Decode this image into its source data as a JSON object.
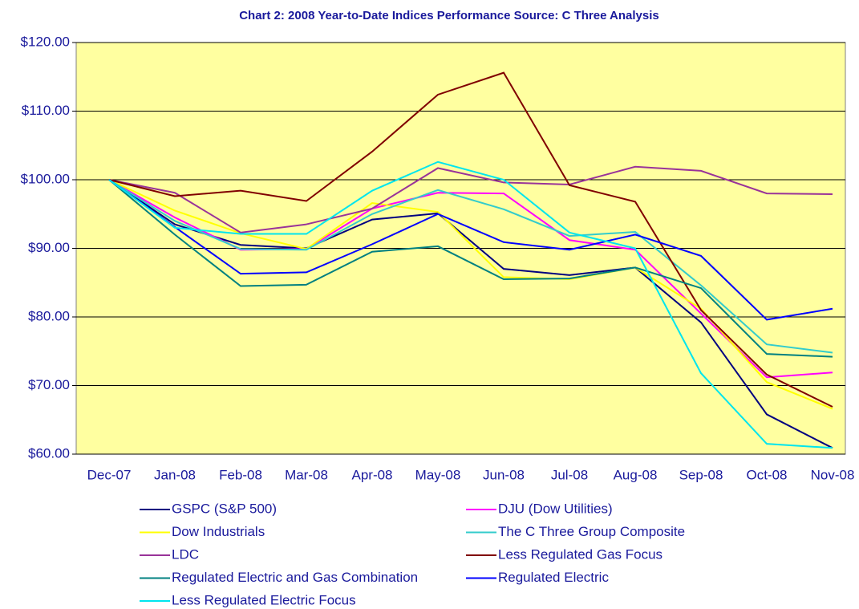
{
  "chart_data": {
    "type": "line",
    "title": "Chart 2:  2008 Year-to-Date Indices Performance     Source:  C Three Analysis",
    "categories": [
      "Dec-07",
      "Jan-08",
      "Feb-08",
      "Mar-08",
      "Apr-08",
      "May-08",
      "Jun-08",
      "Jul-08",
      "Aug-08",
      "Sep-08",
      "Oct-08",
      "Nov-08"
    ],
    "ylim": [
      60,
      120
    ],
    "yticks": [
      {
        "value": 60,
        "label": "$60.00"
      },
      {
        "value": 70,
        "label": "$70.00"
      },
      {
        "value": 80,
        "label": "$80.00"
      },
      {
        "value": 90,
        "label": "$90.00"
      },
      {
        "value": 100,
        "label": "$100.00"
      },
      {
        "value": 110,
        "label": "$110.00"
      },
      {
        "value": 120,
        "label": "$120.00"
      }
    ],
    "grid": true,
    "legend": "bottom",
    "series": [
      {
        "name": "GSPC (S&P 500)",
        "color": "#000080",
        "values": [
          100,
          93.5,
          90.5,
          90,
          94.2,
          95.1,
          87,
          86.1,
          87.2,
          79.2,
          65.8,
          60.9
        ]
      },
      {
        "name": "DJU (Dow Utilities)",
        "color": "#ff00ff",
        "values": [
          100,
          94.5,
          89.8,
          89.9,
          95.8,
          98.1,
          98,
          91.2,
          89.8,
          80.5,
          71.2,
          71.9
        ]
      },
      {
        "name": "Dow Industrials",
        "color": "#ffff00",
        "values": [
          100,
          95.5,
          92.2,
          89.9,
          96.6,
          95.3,
          85.8,
          85.5,
          87.2,
          81.2,
          70.5,
          66.6
        ]
      },
      {
        "name": "The C Three Group Composite",
        "color": "#33cccc",
        "values": [
          100,
          94,
          89.9,
          89.8,
          95,
          98.5,
          95.7,
          91.8,
          92.4,
          84.6,
          76,
          74.8
        ]
      },
      {
        "name": "LDC",
        "color": "#993399",
        "values": [
          100,
          98.1,
          92.3,
          93.5,
          95.8,
          101.7,
          99.6,
          99.3,
          101.9,
          101.3,
          98,
          97.9
        ]
      },
      {
        "name": "Less Regulated Gas Focus",
        "color": "#800000",
        "values": [
          100,
          97.6,
          98.4,
          96.9,
          104.1,
          112.4,
          115.6,
          99.2,
          96.8,
          81,
          71.6,
          66.9
        ]
      },
      {
        "name": "Regulated Electric and Gas Combination",
        "color": "#008080",
        "values": [
          100,
          92,
          84.5,
          84.7,
          89.5,
          90.3,
          85.5,
          85.6,
          87.2,
          84.2,
          74.6,
          74.2
        ]
      },
      {
        "name": "Regulated Electric",
        "color": "#0000ff",
        "values": [
          100,
          93.1,
          86.3,
          86.5,
          90.6,
          95,
          90.9,
          89.8,
          92,
          88.9,
          79.6,
          81.2
        ]
      },
      {
        "name": "Less Regulated Electric Focus",
        "color": "#00e5ee",
        "values": [
          100,
          93,
          92.1,
          92.1,
          98.4,
          102.6,
          100,
          92.3,
          90,
          71.8,
          61.5,
          60.9
        ]
      }
    ]
  }
}
